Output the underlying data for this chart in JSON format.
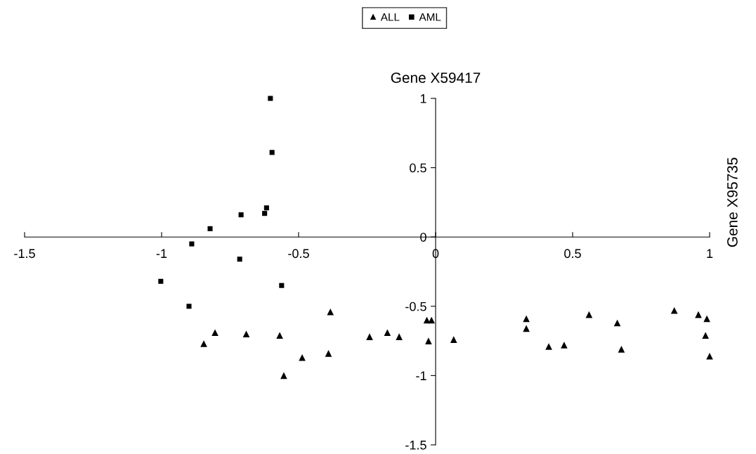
{
  "chart_data": {
    "type": "scatter",
    "title": "Gene X59417",
    "ylabel": "Gene X95735",
    "xlim": [
      -1.5,
      1
    ],
    "ylim": [
      -1.5,
      1
    ],
    "xticks": [
      -1.5,
      -1,
      -0.5,
      0,
      0.5,
      1
    ],
    "yticks": [
      -1.5,
      -1,
      -0.5,
      0,
      0.5,
      1
    ],
    "grid": false,
    "legend": "top",
    "series": [
      {
        "name": "ALL",
        "color": "#000000",
        "marker": "triangle",
        "x": [
          -0.384,
          -0.846,
          -0.805,
          -0.691,
          -0.569,
          -0.554,
          -0.487,
          -0.391,
          -0.241,
          -0.176,
          -0.133,
          -0.032,
          -0.015,
          -0.026,
          0.066,
          0.331,
          0.331,
          0.413,
          0.469,
          0.56,
          0.663,
          0.678,
          0.871,
          0.959,
          0.99,
          0.985,
          1.0
        ],
        "values": [
          -0.54,
          -0.77,
          -0.69,
          -0.7,
          -0.71,
          -1.0,
          -0.87,
          -0.84,
          -0.72,
          -0.69,
          -0.72,
          -0.6,
          -0.6,
          -0.75,
          -0.74,
          -0.59,
          -0.66,
          -0.79,
          -0.78,
          -0.56,
          -0.62,
          -0.81,
          -0.53,
          -0.56,
          -0.59,
          -0.71,
          -0.86
        ]
      },
      {
        "name": "AML",
        "color": "#000000",
        "marker": "square",
        "x": [
          -0.603,
          -0.597,
          -0.617,
          -0.624,
          -0.71,
          -0.823,
          -0.89,
          -0.715,
          -1.003,
          -0.562,
          -0.9
        ],
        "values": [
          1.0,
          0.61,
          0.21,
          0.17,
          0.16,
          0.06,
          -0.05,
          -0.16,
          -0.32,
          -0.35,
          -0.5
        ]
      }
    ]
  }
}
